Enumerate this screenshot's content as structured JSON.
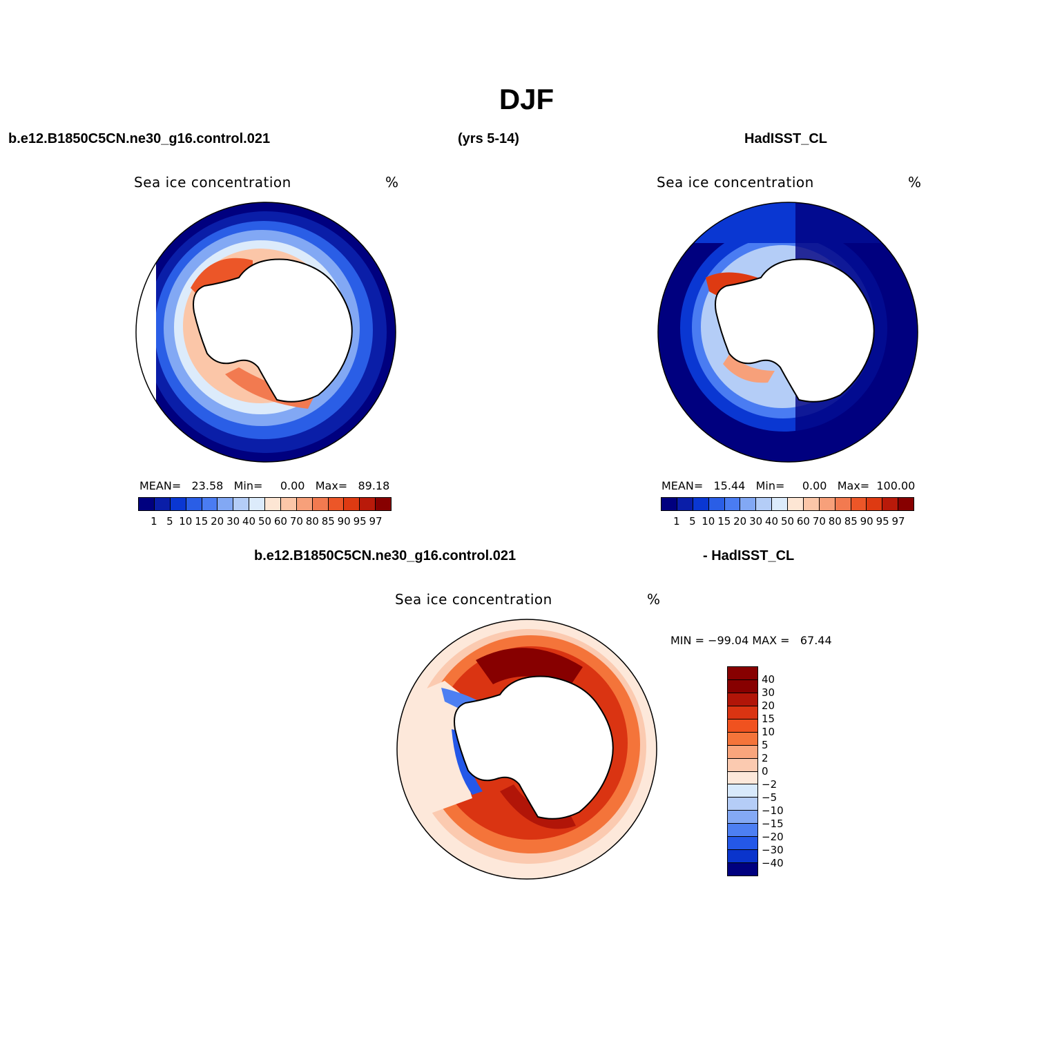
{
  "title": "DJF",
  "header": {
    "case_name": "b.e12.B1850C5CN.ne30_g16.control.021",
    "years": "(yrs 5-14)",
    "obs_name": "HadISST_CL"
  },
  "panels": {
    "model": {
      "title": "Sea ice concentration",
      "units": "%",
      "mean_label": "MEAN=",
      "mean": "23.58",
      "min_label": "Min=",
      "min": "0.00",
      "max_label": "Max=",
      "max": "89.18"
    },
    "obs": {
      "title": "Sea ice concentration",
      "units": "%",
      "mean_label": "MEAN=",
      "mean": "15.44",
      "min_label": "Min=",
      "min": "0.00",
      "max_label": "Max=",
      "max": "100.00"
    },
    "diff": {
      "case_label": "b.e12.B1850C5CN.ne30_g16.control.021",
      "obs_label": "- HadISST_CL",
      "title": "Sea ice concentration",
      "units": "%",
      "minmax": "MIN = −99.04 MAX =   67.44"
    }
  },
  "colorbar_abs": {
    "colors": [
      "#00007f",
      "#0a1ea8",
      "#0a37d2",
      "#2a5ee6",
      "#4a7cf2",
      "#82a8f4",
      "#b4cdf7",
      "#dcebfb",
      "#fde6d4",
      "#fbc6a8",
      "#f7a07a",
      "#f27a50",
      "#ec5628",
      "#de3a12",
      "#b91a0a",
      "#870000"
    ],
    "ticks": [
      "1",
      "5",
      "10",
      "15",
      "20",
      "30",
      "40",
      "50",
      "60",
      "70",
      "80",
      "85",
      "90",
      "95",
      "97"
    ]
  },
  "colorbar_diff": {
    "colors": [
      "#870000",
      "#b11508",
      "#da3412",
      "#f0521f",
      "#f4743a",
      "#f9a57c",
      "#fbcab0",
      "#fde8da",
      "#d8e9fb",
      "#b5cdf7",
      "#84a9f4",
      "#4d7ff2",
      "#2458e8",
      "#0a34cc",
      "#00007f"
    ],
    "ticks": [
      "40",
      "30",
      "20",
      "15",
      "10",
      "5",
      "2",
      "0",
      "−2",
      "−5",
      "−10",
      "−15",
      "−20",
      "−30",
      "−40"
    ]
  },
  "map_colors": {
    "ocean_dark": "#00007f",
    "land": "#ffffff",
    "coast": "#000000"
  }
}
